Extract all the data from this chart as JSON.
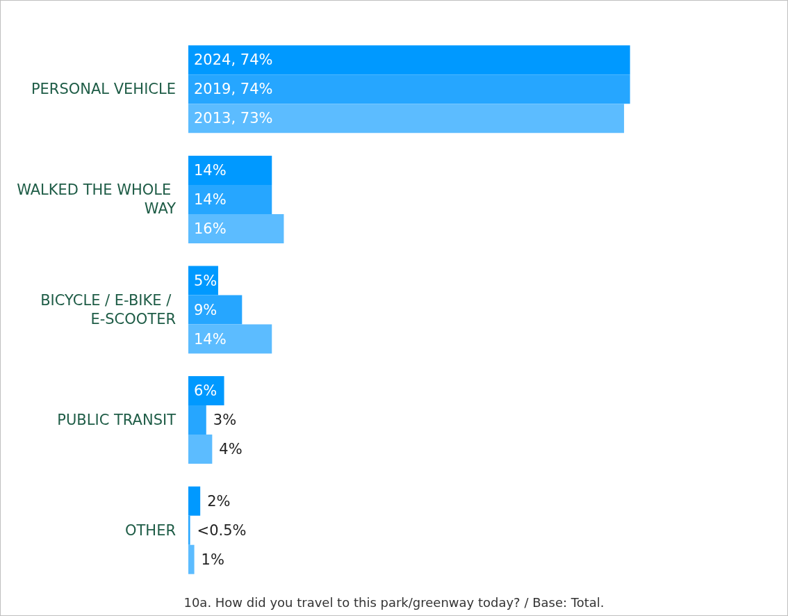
{
  "chart_data": {
    "type": "bar",
    "orientation": "horizontal",
    "categories": [
      "PERSONAL VEHICLE",
      "WALKED THE WHOLE WAY",
      "BICYCLE / E-BIKE / E-SCOOTER",
      "PUBLIC TRANSIT",
      "OTHER"
    ],
    "series": [
      {
        "color": "#0099ff",
        "values": [
          74,
          14,
          5,
          6,
          2
        ],
        "value_labels": [
          "2024, 74%",
          "14%",
          "5%",
          "6%",
          "2%"
        ]
      },
      {
        "color": "#26a6ff",
        "values": [
          74,
          14,
          9,
          3,
          0.3
        ],
        "value_labels": [
          "2019, 74%",
          "14%",
          "9%",
          "3%",
          "<0.5%"
        ]
      },
      {
        "color": "#5cbcff",
        "values": [
          73,
          16,
          14,
          4,
          1
        ],
        "value_labels": [
          "2013, 73%",
          "16%",
          "14%",
          "4%",
          "1%"
        ]
      }
    ],
    "xlim": [
      0,
      100
    ],
    "tick_labels": "y",
    "annotations": [
      "10a. How did you travel to this park/greenway today? / Base: Total."
    ]
  }
}
